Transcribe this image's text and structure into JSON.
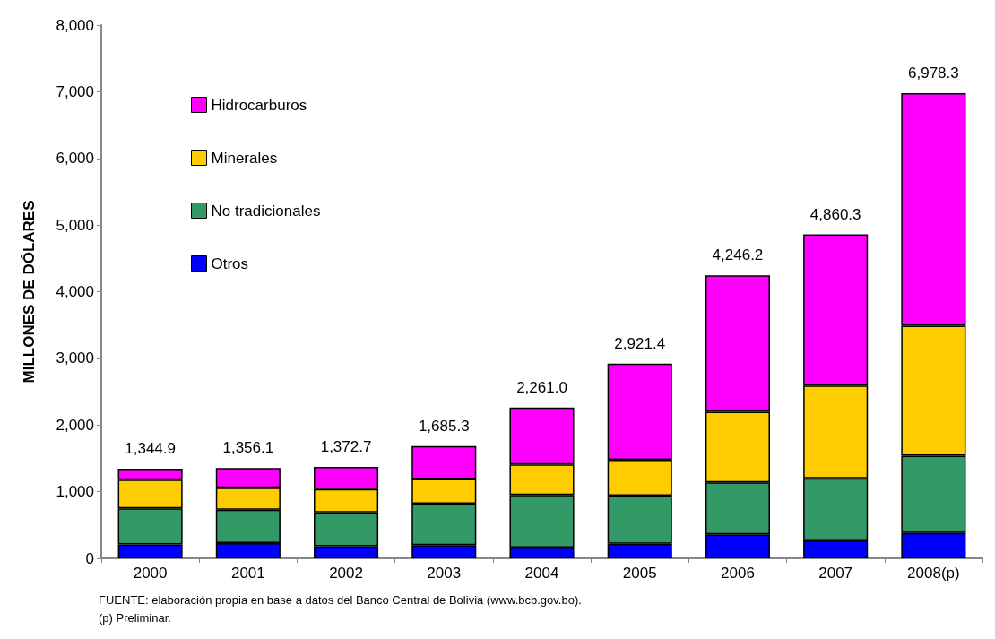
{
  "chart_data": {
    "type": "bar",
    "stacked": true,
    "ylabel": "MILLONES DE DÓLARES",
    "categories": [
      "2000",
      "2001",
      "2002",
      "2003",
      "2004",
      "2005",
      "2006",
      "2007",
      "2008(p)"
    ],
    "series": [
      {
        "name": "Otros",
        "color": "#0000ff",
        "values": [
          210,
          230,
          180,
          200,
          160,
          220,
          360,
          270,
          380
        ]
      },
      {
        "name": "No tradicionales",
        "color": "#339966",
        "values": [
          540,
          500,
          510,
          620,
          790,
          720,
          780,
          930,
          1160
        ]
      },
      {
        "name": "Minerales",
        "color": "#ffcc00",
        "values": [
          430,
          330,
          350,
          370,
          460,
          540,
          1060,
          1390,
          1950
        ]
      },
      {
        "name": "Hidrocarburos",
        "color": "#ff00ff",
        "values": [
          164.9,
          296.1,
          332.7,
          495.3,
          851.0,
          1441.4,
          2046.2,
          2270.3,
          3488.3
        ]
      }
    ],
    "totals": [
      "1,344.9",
      "1,356.1",
      "1,372.7",
      "1,685.3",
      "2,261.0",
      "2,921.4",
      "4,246.2",
      "4,860.3",
      "6,978.3"
    ],
    "ylim": [
      0,
      8000
    ],
    "yticks": [
      0,
      {
        "value": 1000,
        "label": "1,000"
      },
      {
        "value": 2000,
        "label": "2,000"
      },
      {
        "value": 3000,
        "label": "3,000"
      },
      {
        "value": 4000,
        "label": "4,000"
      },
      {
        "value": 5000,
        "label": "5,000"
      },
      {
        "value": 6000,
        "label": "6,000"
      },
      {
        "value": 7000,
        "label": "7,000"
      },
      {
        "value": 8000,
        "label": "8,000"
      }
    ],
    "grid": false,
    "legend": "top left",
    "annotations": [
      "FUENTE: elaboración propia en base a datos del Banco Central de Bolivia (www.bcb.gov.bo).",
      "(p) Preliminar."
    ]
  }
}
